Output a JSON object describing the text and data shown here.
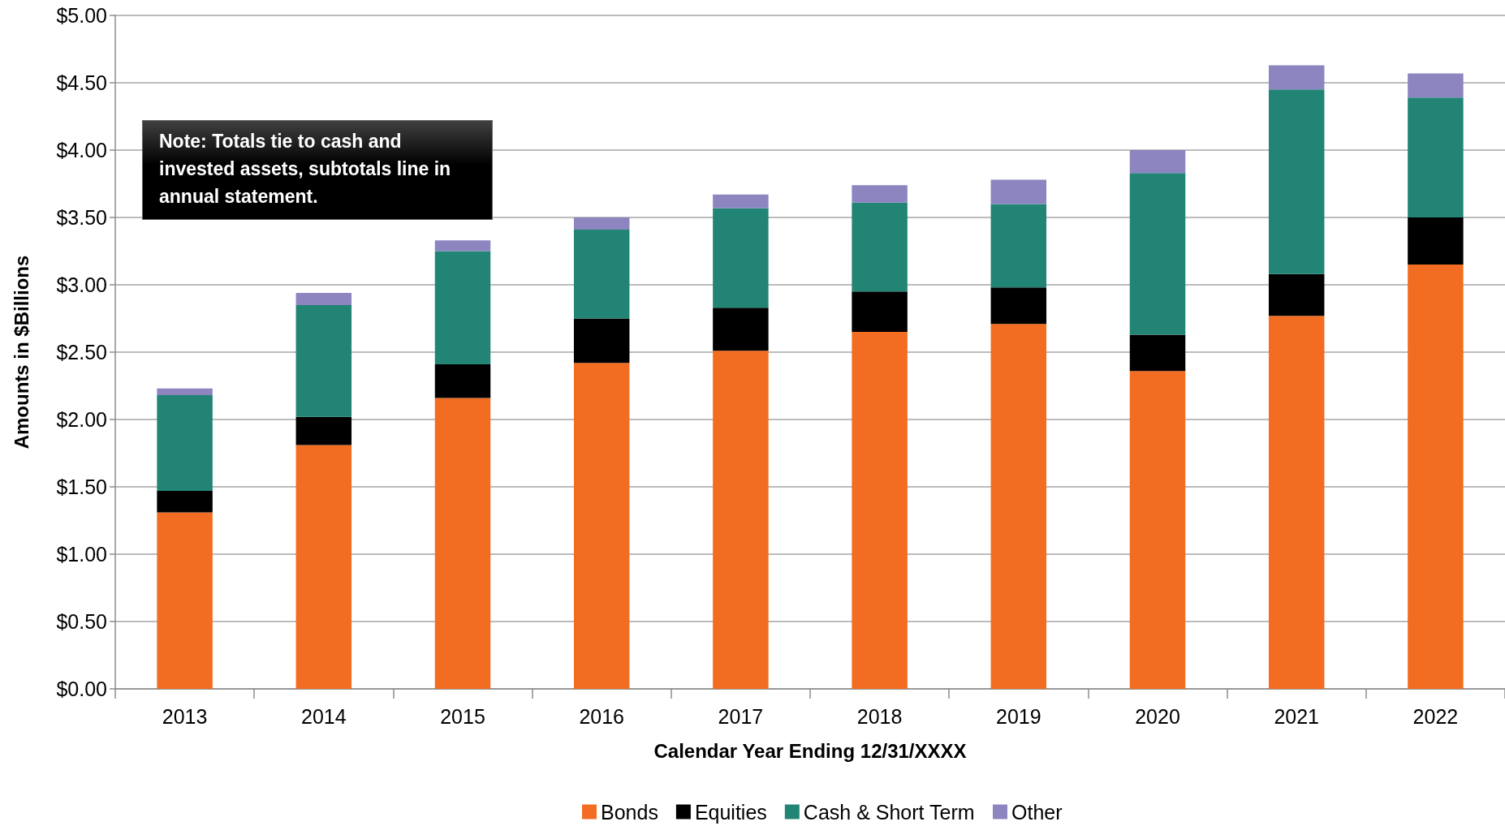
{
  "chart_data": {
    "type": "bar",
    "stacked": true,
    "xlabel": "Calendar Year Ending 12/31/XXXX",
    "ylabel": "Amounts in $Billions",
    "categories": [
      "2013",
      "2014",
      "2015",
      "2016",
      "2017",
      "2018",
      "2019",
      "2020",
      "2021",
      "2022"
    ],
    "series": [
      {
        "name": "Bonds",
        "color": "#f26c22",
        "values": [
          1.31,
          1.81,
          2.16,
          2.42,
          2.51,
          2.65,
          2.71,
          2.36,
          2.77,
          3.15
        ]
      },
      {
        "name": "Equities",
        "color": "#000000",
        "values": [
          0.16,
          0.21,
          0.25,
          0.33,
          0.32,
          0.3,
          0.27,
          0.27,
          0.31,
          0.35
        ]
      },
      {
        "name": "Cash & Short Term",
        "color": "#218474",
        "values": [
          0.71,
          0.83,
          0.84,
          0.66,
          0.74,
          0.66,
          0.62,
          1.2,
          1.37,
          0.89
        ]
      },
      {
        "name": "Other",
        "color": "#8c85c0",
        "values": [
          0.05,
          0.09,
          0.08,
          0.09,
          0.1,
          0.13,
          0.18,
          0.17,
          0.18,
          0.18
        ]
      }
    ],
    "ylim": [
      0,
      5
    ],
    "yticks": [
      {
        "value": 0,
        "label": "$0.00"
      },
      {
        "value": 0.5,
        "label": "$0.50"
      },
      {
        "value": 1,
        "label": "$1.00"
      },
      {
        "value": 1.5,
        "label": "$1.50"
      },
      {
        "value": 2,
        "label": "$2.00"
      },
      {
        "value": 2.5,
        "label": "$2.50"
      },
      {
        "value": 3,
        "label": "$3.00"
      },
      {
        "value": 3.5,
        "label": "$3.50"
      },
      {
        "value": 4,
        "label": "$4.00"
      },
      {
        "value": 4.5,
        "label": "$4.50"
      },
      {
        "value": 5,
        "label": "$5.00"
      }
    ],
    "grid": "y",
    "legend": "bottom",
    "annotations": [
      "Note: Totals tie to cash and invested assets, subtotals line in annual statement."
    ]
  }
}
